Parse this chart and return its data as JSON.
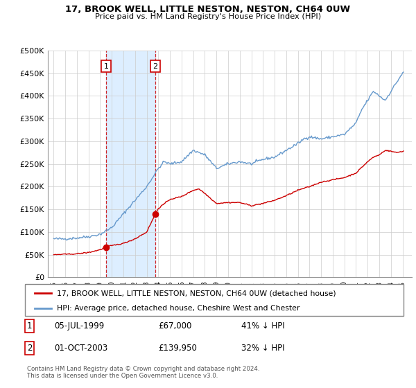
{
  "title_line1": "17, BROOK WELL, LITTLE NESTON, NESTON, CH64 0UW",
  "title_line2": "Price paid vs. HM Land Registry's House Price Index (HPI)",
  "xlim_start": 1994.5,
  "xlim_end": 2025.8,
  "ylim": [
    0,
    500000
  ],
  "yticks": [
    0,
    50000,
    100000,
    150000,
    200000,
    250000,
    300000,
    350000,
    400000,
    450000,
    500000
  ],
  "ytick_labels": [
    "£0",
    "£50K",
    "£100K",
    "£150K",
    "£200K",
    "£250K",
    "£300K",
    "£350K",
    "£400K",
    "£450K",
    "£500K"
  ],
  "transaction1_x": 1999.5,
  "transaction1_y": 67000,
  "transaction1_label": "1",
  "transaction2_x": 2003.75,
  "transaction2_y": 139950,
  "transaction2_label": "2",
  "sale_color": "#cc0000",
  "hpi_color": "#6699cc",
  "shade_color": "#ddeeff",
  "vline_color": "#cc0000",
  "legend_label_sale": "17, BROOK WELL, LITTLE NESTON, NESTON, CH64 0UW (detached house)",
  "legend_label_hpi": "HPI: Average price, detached house, Cheshire West and Chester",
  "table_row1": [
    "1",
    "05-JUL-1999",
    "£67,000",
    "41% ↓ HPI"
  ],
  "table_row2": [
    "2",
    "01-OCT-2003",
    "£139,950",
    "32% ↓ HPI"
  ],
  "footnote": "Contains HM Land Registry data © Crown copyright and database right 2024.\nThis data is licensed under the Open Government Licence v3.0.",
  "background_color": "#ffffff",
  "grid_color": "#cccccc",
  "hpi_anchors_x": [
    1995.0,
    1996.0,
    1997.0,
    1998.0,
    1999.0,
    2000.0,
    2001.0,
    2001.5,
    2002.0,
    2003.0,
    2004.0,
    2004.5,
    2005.0,
    2006.0,
    2007.0,
    2008.0,
    2008.5,
    2009.0,
    2009.5,
    2010.0,
    2011.0,
    2012.0,
    2013.0,
    2014.0,
    2015.0,
    2016.0,
    2016.5,
    2017.0,
    2018.0,
    2019.0,
    2020.0,
    2021.0,
    2021.5,
    2022.0,
    2022.5,
    2023.0,
    2023.5,
    2024.0,
    2024.5,
    2025.0
  ],
  "hpi_anchors_y": [
    85000,
    85000,
    87000,
    90000,
    95000,
    110000,
    140000,
    155000,
    170000,
    200000,
    240000,
    255000,
    250000,
    255000,
    280000,
    270000,
    255000,
    240000,
    245000,
    250000,
    255000,
    250000,
    260000,
    265000,
    280000,
    295000,
    305000,
    310000,
    305000,
    310000,
    315000,
    340000,
    370000,
    390000,
    410000,
    400000,
    390000,
    410000,
    430000,
    450000
  ],
  "sale_anchors_x": [
    1995.0,
    1996.0,
    1997.0,
    1998.0,
    1999.0,
    1999.5,
    2000.0,
    2001.0,
    2002.0,
    2003.0,
    2003.75,
    2004.0,
    2005.0,
    2006.0,
    2007.0,
    2007.5,
    2008.0,
    2009.0,
    2010.0,
    2011.0,
    2012.0,
    2013.0,
    2014.0,
    2015.0,
    2016.0,
    2017.0,
    2018.0,
    2019.0,
    2020.0,
    2021.0,
    2022.0,
    2022.5,
    2023.0,
    2023.5,
    2024.0,
    2024.5,
    2025.0
  ],
  "sale_anchors_y": [
    50000,
    51000,
    52000,
    55000,
    61000,
    67000,
    70000,
    75000,
    85000,
    100000,
    139950,
    152000,
    172000,
    178000,
    192000,
    195000,
    185000,
    163000,
    165000,
    165000,
    158000,
    163000,
    170000,
    180000,
    192000,
    200000,
    210000,
    215000,
    220000,
    230000,
    255000,
    265000,
    270000,
    280000,
    278000,
    275000,
    278000
  ]
}
